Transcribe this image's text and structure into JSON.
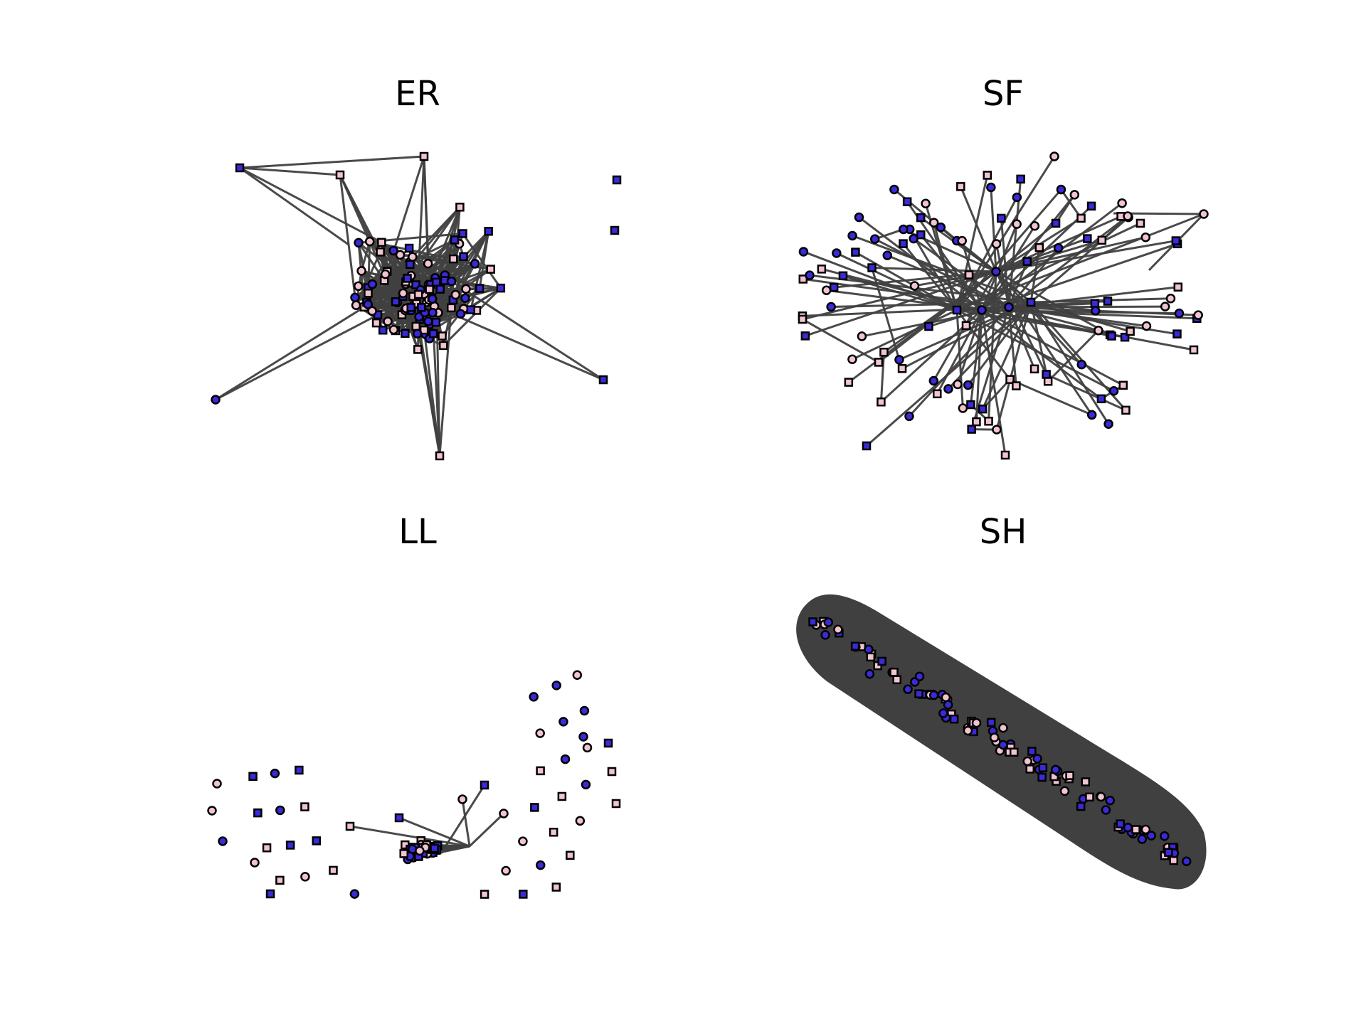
{
  "figure": {
    "panels": [
      {
        "id": "er",
        "title": "ER"
      },
      {
        "id": "sf",
        "title": "SF"
      },
      {
        "id": "ll",
        "title": "LL"
      },
      {
        "id": "sh",
        "title": "SH"
      }
    ]
  },
  "colors": {
    "edge": "#404040",
    "node_stroke": "#000000",
    "node_blue": "#3a2ad8",
    "node_pink": "#f2c4d0",
    "background": "#ffffff"
  },
  "legend": {
    "node_shapes": [
      "circle",
      "square"
    ],
    "node_fill_colors": [
      "blue",
      "pink"
    ]
  }
}
